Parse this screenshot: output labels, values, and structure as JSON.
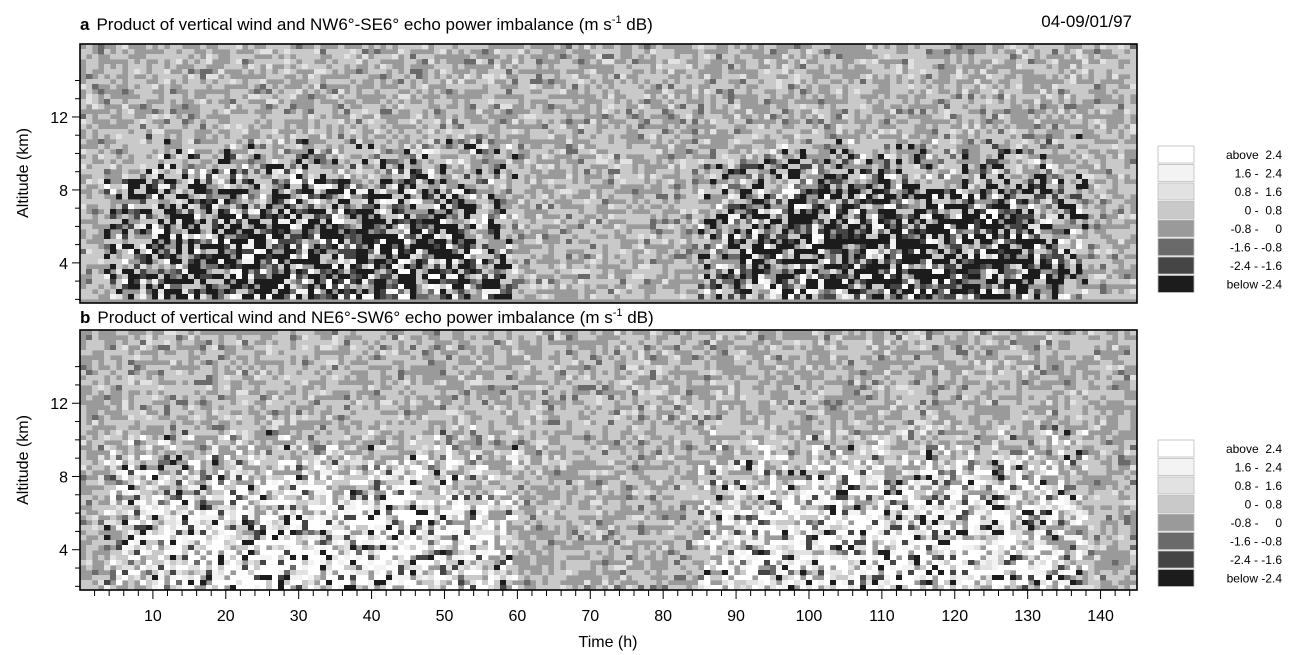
{
  "chart_data": [
    {
      "type": "heatmap",
      "panel": "a",
      "title": "Product of vertical wind and NW6°-SE6° echo power imbalance (m s",
      "title_sup": "-1",
      "title_suffix": " dB)",
      "date_label": "04-09/01/97",
      "ylabel": "Altitude (km)",
      "ylim": [
        1.8,
        16
      ],
      "yticks": [
        "4",
        "8",
        "12"
      ],
      "xlim": [
        0,
        145
      ],
      "legend": [
        "above  2.4",
        "1.6 -  2.4",
        "0.8 -  1.6",
        "0 -  0.8",
        "-0.8 -     0",
        "-1.6 - -0.8",
        "-2.4 - -1.6",
        "below -2.4"
      ],
      "legend_colors": [
        "#ffffff",
        "#f3f3f3",
        "#e2e2e2",
        "#c9c9c9",
        "#9a9a9a",
        "#6a6a6a",
        "#454545",
        "#1c1c1c"
      ],
      "active_periods_h": [
        [
          3,
          60
        ],
        [
          85,
          138
        ]
      ]
    },
    {
      "type": "heatmap",
      "panel": "b",
      "title": "Product of vertical wind and NE6°-SW6° echo power imbalance (m s",
      "title_sup": "-1",
      "title_suffix": " dB)",
      "ylabel": "Altitude (km)",
      "ylim": [
        1.8,
        16
      ],
      "yticks": [
        "4",
        "8",
        "12"
      ],
      "xlabel": "Time (h)",
      "xticks": [
        "10",
        "20",
        "30",
        "40",
        "50",
        "60",
        "70",
        "80",
        "90",
        "100",
        "110",
        "120",
        "130",
        "140"
      ],
      "xlim": [
        0,
        145
      ],
      "legend": [
        "above  2.4",
        "1.6 -  2.4",
        "0.8 -  1.6",
        "0 -  0.8",
        "-0.8 -     0",
        "-1.6 - -0.8",
        "-2.4 - -1.6",
        "below -2.4"
      ],
      "legend_colors": [
        "#ffffff",
        "#f3f3f3",
        "#e2e2e2",
        "#c9c9c9",
        "#9a9a9a",
        "#6a6a6a",
        "#454545",
        "#1c1c1c"
      ],
      "active_periods_h": [
        [
          3,
          60
        ],
        [
          85,
          138
        ]
      ]
    }
  ]
}
